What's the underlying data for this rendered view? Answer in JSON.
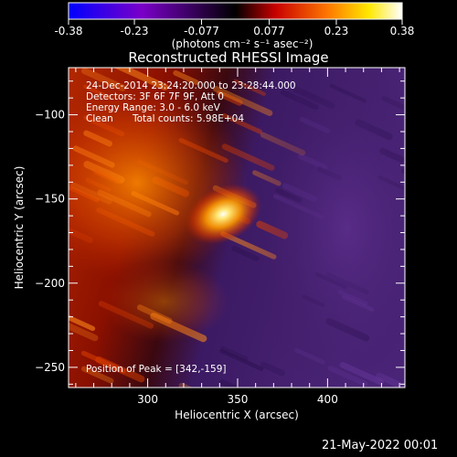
{
  "title": "Reconstructed RHESSI Image",
  "colorbar": {
    "ticks": [
      "-0.38",
      "-0.23",
      "-0.077",
      "0.077",
      "0.23",
      "0.38"
    ],
    "range": [
      -0.38,
      0.38
    ],
    "unit_label": "(photons cm⁻² s⁻¹ asec⁻²)",
    "colors": [
      "#0000ff",
      "#7a00c8",
      "#000000",
      "#c80000",
      "#ff7a00",
      "#ffe800",
      "#ffffff"
    ]
  },
  "annotations": {
    "time": "24-Dec-2014 23:24:20.000 to 23:28:44.000",
    "detectors": "Detectors: 3F 6F 7F 9F, Att 0",
    "energy": "Energy Range: 3.0 - 6.0 keV",
    "clean": "Clean",
    "counts": "Total counts: 5.98E+04",
    "peak": "Position of Peak = [342,-159]"
  },
  "axes": {
    "xlabel": "Heliocentric X (arcsec)",
    "ylabel": "Heliocentric Y (arcsec)",
    "xticks": [
      "300",
      "350",
      "400"
    ],
    "yticks": [
      "-100",
      "-150",
      "-200",
      "-250"
    ],
    "xrange": [
      256,
      443
    ],
    "yrange": [
      -262,
      -72
    ]
  },
  "peak": {
    "x": 342,
    "y": -159
  },
  "footer": "21-May-2022 00:01"
}
